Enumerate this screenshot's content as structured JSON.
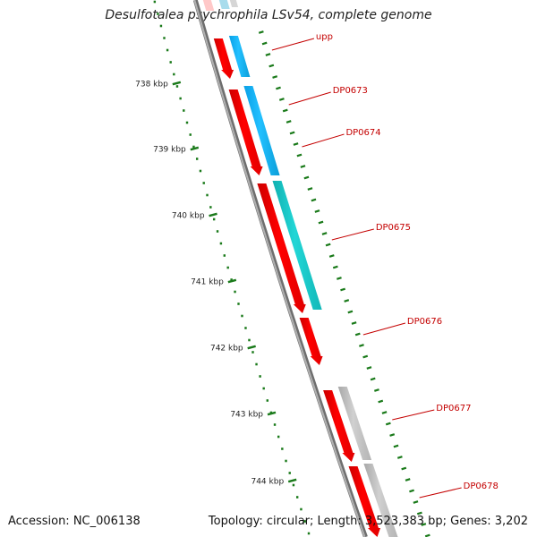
{
  "title": "Desulfotalea psychrophila LSv54, complete genome",
  "footer": {
    "accession": "Accession: NC_006138",
    "summary": "Topology: circular; Length: 3,523,383 bp; Genes: 3,202"
  },
  "colors": {
    "backbone": "#8a8a8a",
    "forward_gene": "#ff0000",
    "tick": "#1a7a1a",
    "label": "#c40000",
    "cog_blue": "#14b4ff",
    "cog_teal": "#18c8c8",
    "cog_gray": "#bfbfbf",
    "cog_pink": "#ffc8c8"
  },
  "kbp_ticks": [
    {
      "label": "738 kbp"
    },
    {
      "label": "739 kbp"
    },
    {
      "label": "740 kbp"
    },
    {
      "label": "741 kbp"
    },
    {
      "label": "742 kbp"
    },
    {
      "label": "743 kbp"
    },
    {
      "label": "744 kbp"
    }
  ],
  "genes": [
    {
      "name": "upp"
    },
    {
      "name": "DP0673"
    },
    {
      "name": "DP0674"
    },
    {
      "name": "DP0675"
    },
    {
      "name": "DP0676"
    },
    {
      "name": "DP0677"
    },
    {
      "name": "DP0678"
    }
  ]
}
